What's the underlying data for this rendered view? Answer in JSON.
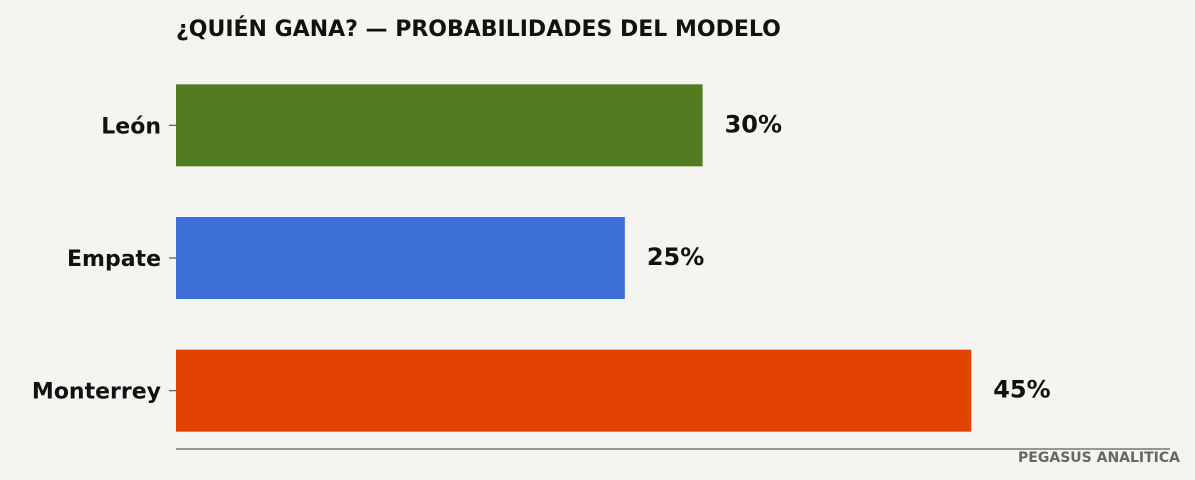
{
  "chart_data": {
    "type": "bar",
    "orientation": "horizontal",
    "title": "¿QUIÉN GANA? — PROBABILIDADES DEL MODELO",
    "categories": [
      "León",
      "Empate",
      "Monterrey"
    ],
    "values": [
      29.8,
      25.4,
      45
    ],
    "value_labels": [
      "30%",
      "25%",
      "45%"
    ],
    "colors": [
      "#527a1f",
      "#3e6fd6",
      "#e04400"
    ],
    "xlim": [
      0,
      56.25
    ],
    "source": "PEGASUS ANALITICA"
  }
}
